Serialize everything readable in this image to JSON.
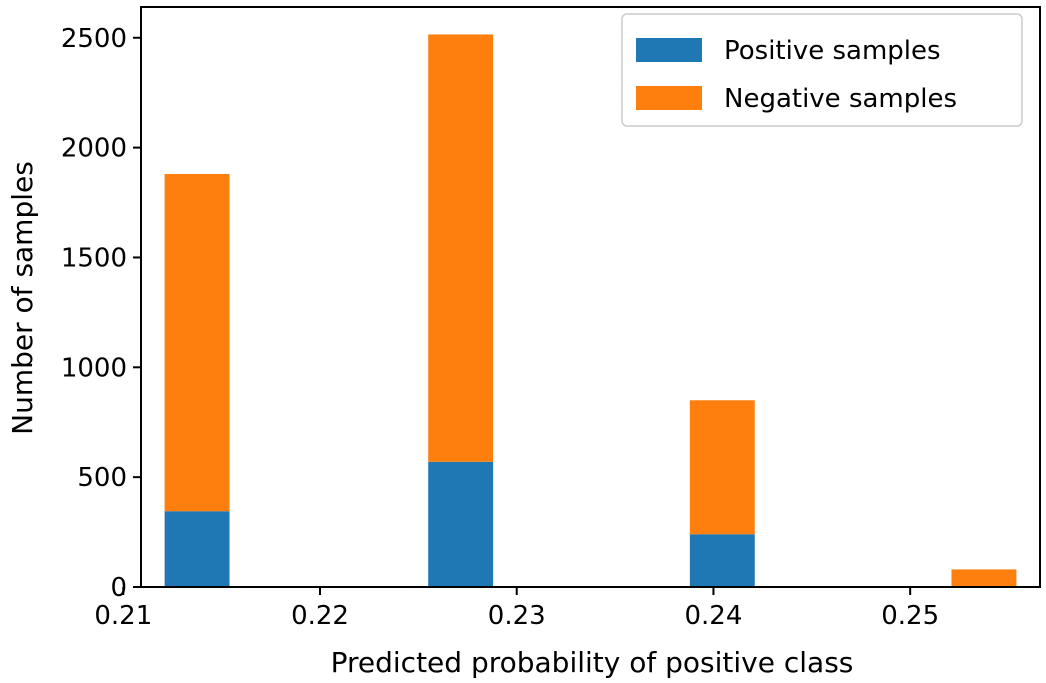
{
  "chart_data": {
    "type": "bar",
    "stacked": true,
    "xlabel": "Predicted probability of positive class",
    "ylabel": "Number of samples",
    "xlim": [
      0.2109,
      0.2566
    ],
    "ylim": [
      0,
      2640
    ],
    "x_ticks": [
      0.21,
      0.22,
      0.23,
      0.24,
      0.25
    ],
    "x_tick_labels": [
      "0.21",
      "0.22",
      "0.23",
      "0.24",
      "0.25"
    ],
    "y_ticks": [
      0,
      500,
      1000,
      1500,
      2000,
      2500
    ],
    "y_tick_labels": [
      "0",
      "500",
      "1000",
      "1500",
      "2000",
      "2500"
    ],
    "bins": [
      {
        "x_start": 0.2121,
        "x_end": 0.2154
      },
      {
        "x_start": 0.2255,
        "x_end": 0.2288
      },
      {
        "x_start": 0.2388,
        "x_end": 0.2421
      },
      {
        "x_start": 0.2521,
        "x_end": 0.2554
      }
    ],
    "series": [
      {
        "name": "Positive samples",
        "color": "#1f77b4",
        "values": [
          345,
          570,
          240,
          0
        ]
      },
      {
        "name": "Negative samples",
        "color": "#ff7f0e",
        "values": [
          1535,
          1945,
          610,
          80
        ]
      }
    ],
    "legend_position": "top-right",
    "grid": false
  }
}
